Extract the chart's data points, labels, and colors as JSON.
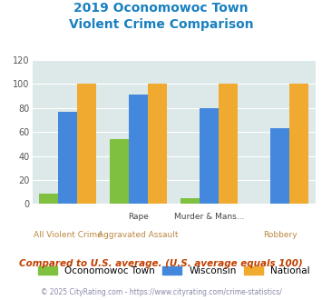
{
  "title_line1": "2019 Oconomowoc Town",
  "title_line2": "Violent Crime Comparison",
  "x_positions": [
    0,
    1,
    2,
    3
  ],
  "row1_labels": [
    "",
    "Rape",
    "Murder & Mans...",
    ""
  ],
  "row2_labels": [
    "All Violent Crime",
    "Aggravated Assault",
    "",
    "Robbery"
  ],
  "oconomowoc": [
    9,
    54,
    5,
    0
  ],
  "wisconsin": [
    77,
    91,
    80,
    63
  ],
  "national": [
    100,
    100,
    100,
    100
  ],
  "color_oconomowoc": "#80c040",
  "color_wisconsin": "#4488dd",
  "color_national": "#f0aa30",
  "ylim": [
    0,
    120
  ],
  "yticks": [
    0,
    20,
    40,
    60,
    80,
    100,
    120
  ],
  "plot_bg": "#dde8e8",
  "title_color": "#1a80c0",
  "footer_text": "Compared to U.S. average. (U.S. average equals 100)",
  "footer_color": "#c04000",
  "credit_text": "© 2025 CityRating.com - https://www.cityrating.com/crime-statistics/",
  "credit_color": "#8888aa",
  "legend_labels": [
    "Oconomowoc Town",
    "Wisconsin",
    "National"
  ],
  "bar_width": 0.27
}
